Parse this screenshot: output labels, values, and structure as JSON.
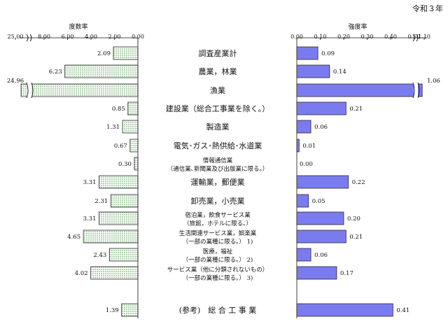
{
  "era_label": "令和３年",
  "chart_data": [
    {
      "type": "bar",
      "orientation": "horizontal",
      "direction": "right-to-left",
      "title": "度数率",
      "xlim": [
        0,
        25.0
      ],
      "axis_break": [
        8.0,
        25.0
      ],
      "tick_labels": [
        "25.00",
        "8.00",
        "6.00",
        "4.00",
        "2.00",
        "0.00"
      ],
      "values": [
        2.09,
        6.23,
        24.96,
        0.85,
        1.31,
        0.67,
        0.3,
        3.31,
        2.31,
        3.31,
        4.65,
        2.43,
        4.02,
        1.39
      ],
      "value_labels": [
        "2.09",
        "6.23",
        "24.96",
        "0.85",
        "1.31",
        "0.67",
        "0.30",
        "3.31",
        "2.31",
        "3.31",
        "4.65",
        "2.43",
        "4.02",
        "1.39"
      ],
      "pattern": "green-dotted"
    },
    {
      "type": "bar",
      "orientation": "horizontal",
      "direction": "left-to-right",
      "title": "強度率",
      "xlim": [
        0,
        1.1
      ],
      "axis_break": [
        0.5,
        1.1
      ],
      "tick_labels": [
        "0.00",
        "0.10",
        "0.20",
        "0.30",
        "0.40",
        "0.50",
        "1.10"
      ],
      "values": [
        0.09,
        0.14,
        1.06,
        0.21,
        0.06,
        0.01,
        0.0,
        0.22,
        0.05,
        0.2,
        0.21,
        0.06,
        0.17,
        0.41
      ],
      "value_labels": [
        "0.09",
        "0.14",
        "1.06",
        "0.21",
        "0.06",
        "0.01",
        "0.00",
        "0.22",
        "0.05",
        "0.20",
        "0.21",
        "0.06",
        "0.17",
        "0.41"
      ],
      "color": "#7b7bf0"
    }
  ],
  "categories": [
    {
      "lines": [
        "調査産業計"
      ],
      "size": "large"
    },
    {
      "lines": [
        "農業，林業"
      ],
      "size": "large"
    },
    {
      "lines": [
        "漁業"
      ],
      "size": "large"
    },
    {
      "lines": [
        "建設業（総合工事業を除く。）"
      ],
      "size": "large"
    },
    {
      "lines": [
        "製造業"
      ],
      "size": "large"
    },
    {
      "lines": [
        "電気･ガス･熱供給･水道業"
      ],
      "size": "large"
    },
    {
      "lines": [
        "情報通信業",
        "（通信業､新聞業及び出版業に限る。）"
      ],
      "size": "small"
    },
    {
      "lines": [
        "運輸業，郵便業"
      ],
      "size": "large"
    },
    {
      "lines": [
        "卸売業，小売業"
      ],
      "size": "large"
    },
    {
      "lines": [
        "宿泊業，飲食サービス業",
        "（旅館，ホテルに限る。）"
      ],
      "size": "small"
    },
    {
      "lines": [
        "生活関連サービス業，娯楽業",
        "（一部の業種に限る。） 1)"
      ],
      "size": "small"
    },
    {
      "lines": [
        "医療，福祉",
        "（一部の業種に限る。） 2)"
      ],
      "size": "small"
    },
    {
      "lines": [
        "サービス業（他に分類されないもの）",
        "（一部の業種に限る。） 3)"
      ],
      "size": "small"
    },
    {
      "lines": [
        "(参考)　総 合 工 事 業"
      ],
      "size": "large"
    }
  ]
}
